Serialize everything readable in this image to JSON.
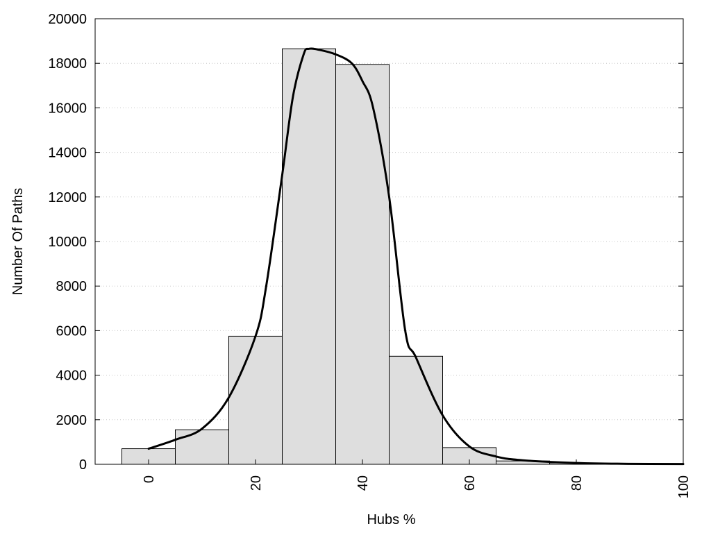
{
  "chart_data": {
    "type": "bar",
    "xlabel": "Hubs %",
    "ylabel": "Number Of Paths",
    "xlim": [
      -10,
      100
    ],
    "ylim": [
      0,
      20000
    ],
    "x_ticks": [
      0,
      20,
      40,
      60,
      80,
      100
    ],
    "y_ticks": [
      0,
      2000,
      4000,
      6000,
      8000,
      10000,
      12000,
      14000,
      16000,
      18000,
      20000
    ],
    "grid": "horizontal-dotted",
    "bin_width": 10,
    "bins": [
      {
        "center": 0,
        "value": 700
      },
      {
        "center": 10,
        "value": 1550
      },
      {
        "center": 20,
        "value": 5750
      },
      {
        "center": 30,
        "value": 18650
      },
      {
        "center": 40,
        "value": 17950
      },
      {
        "center": 50,
        "value": 4850
      },
      {
        "center": 60,
        "value": 750
      },
      {
        "center": 70,
        "value": 150
      },
      {
        "center": 80,
        "value": 60
      },
      {
        "center": 90,
        "value": 30
      },
      {
        "center": 100,
        "value": 10
      }
    ],
    "bar_color": "#dedede",
    "curve": {
      "x": [
        0,
        5,
        10,
        15,
        20,
        22,
        25,
        27,
        29,
        30,
        32,
        35,
        38,
        40,
        42,
        45,
        48,
        50,
        55,
        60,
        65,
        70,
        80,
        90,
        100
      ],
      "y": [
        700,
        1100,
        1600,
        3000,
        5750,
        8000,
        13000,
        16500,
        18400,
        18650,
        18600,
        18400,
        18000,
        17200,
        16000,
        12000,
        6000,
        4800,
        2200,
        800,
        350,
        180,
        60,
        20,
        10
      ]
    }
  }
}
